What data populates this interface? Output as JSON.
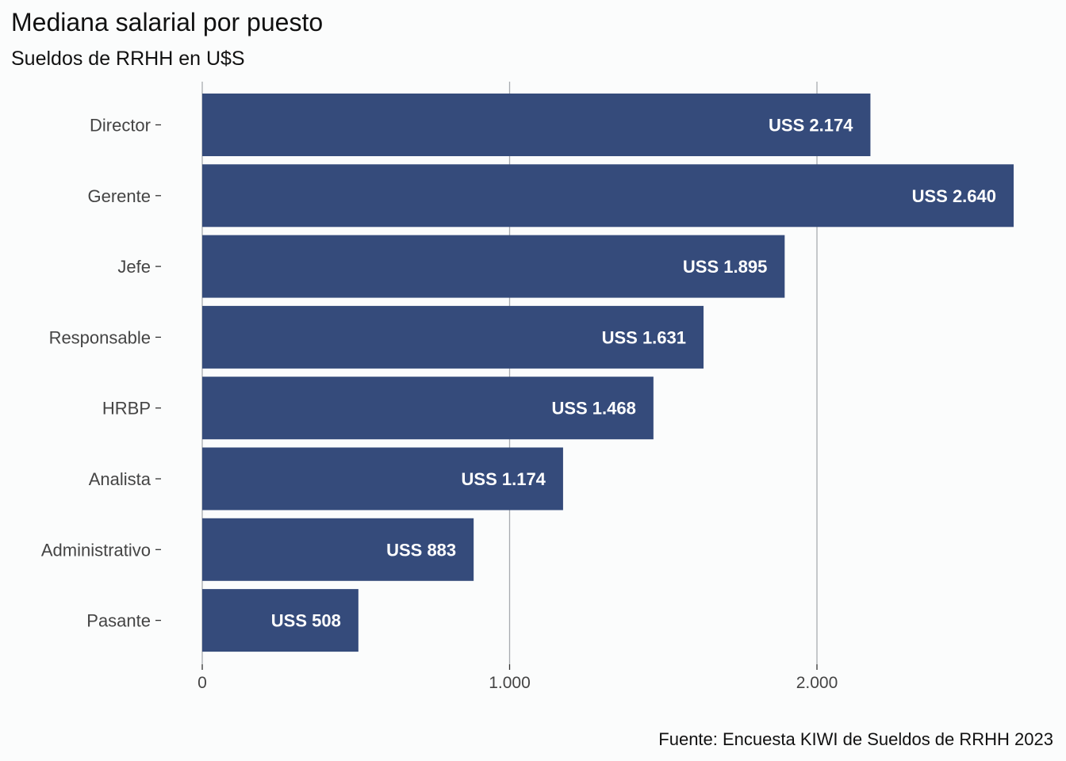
{
  "chart_data": {
    "type": "bar",
    "orientation": "horizontal",
    "title": "Mediana salarial por puesto",
    "subtitle": "Sueldos de RRHH en U$S",
    "caption": "Fuente: Encuesta KIWI de Sueldos de RRHH 2023",
    "categories": [
      "Director",
      "Gerente",
      "Jefe",
      "Responsable",
      "HRBP",
      "Analista",
      "Administrativo",
      "Pasante"
    ],
    "values": [
      2174,
      2640,
      1895,
      1631,
      1468,
      1174,
      883,
      508
    ],
    "data_labels": [
      "USS 2.174",
      "USS 2.640",
      "USS 1.895",
      "USS 1.631",
      "USS 1.468",
      "USS 1.174",
      "USS 883",
      "USS 508"
    ],
    "x_ticks": [
      0,
      1000,
      2000
    ],
    "x_tick_labels": [
      "0",
      "1.000",
      "2.000"
    ],
    "xlim": [
      0,
      2640
    ],
    "grid": true,
    "bar_color": "#354b7b",
    "label_color": "#ffffff",
    "grid_color": "#a8abb0",
    "axis_text_color": "#444444",
    "background": "#fbfcfc"
  }
}
